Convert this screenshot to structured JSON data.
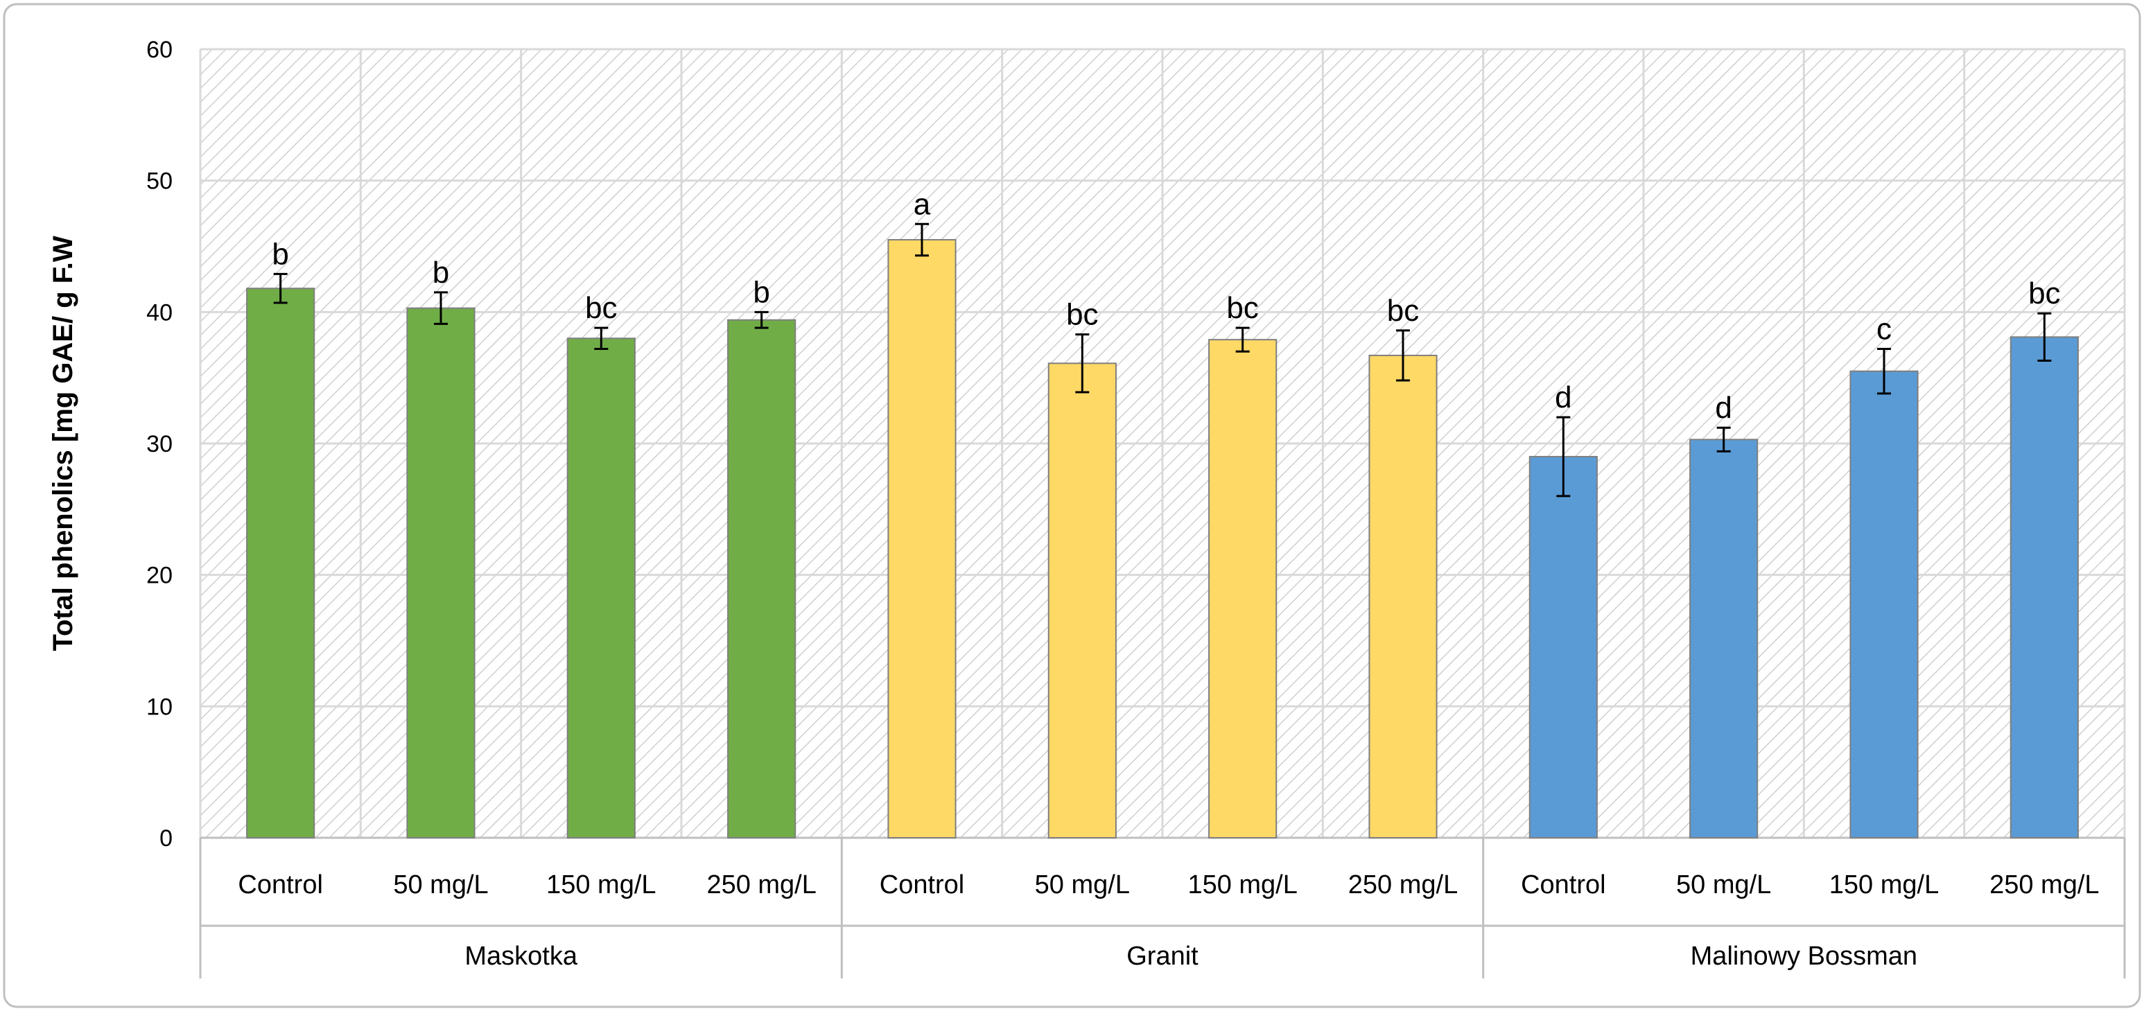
{
  "chart_data": {
    "type": "bar",
    "title": "",
    "xlabel": "",
    "ylabel": "Total phenolics [mg GAE/ g F.W",
    "ylim": [
      0,
      60
    ],
    "yticks": [
      0,
      10,
      20,
      30,
      40,
      50,
      60
    ],
    "grid": true,
    "background": "diagonal-hatch",
    "groups": [
      {
        "name": "Maskotka",
        "color": "#70AD47",
        "categories": [
          "Control",
          "50 mg/L",
          "150 mg/L",
          "250 mg/L"
        ]
      },
      {
        "name": "Granit",
        "color": "#FFD966",
        "categories": [
          "Control",
          "50 mg/L",
          "150 mg/L",
          "250 mg/L"
        ]
      },
      {
        "name": "Malinowy Bossman",
        "color": "#5B9BD5",
        "categories": [
          "Control",
          "50 mg/L",
          "150 mg/L",
          "250 mg/L"
        ]
      }
    ],
    "bars": [
      {
        "group": "Maskotka",
        "category": "Control",
        "value": 41.8,
        "error": 1.1,
        "letter": "b"
      },
      {
        "group": "Maskotka",
        "category": "50 mg/L",
        "value": 40.3,
        "error": 1.2,
        "letter": "b"
      },
      {
        "group": "Maskotka",
        "category": "150 mg/L",
        "value": 38.0,
        "error": 0.8,
        "letter": "bc"
      },
      {
        "group": "Maskotka",
        "category": "250 mg/L",
        "value": 39.4,
        "error": 0.6,
        "letter": "b"
      },
      {
        "group": "Granit",
        "category": "Control",
        "value": 45.5,
        "error": 1.2,
        "letter": "a"
      },
      {
        "group": "Granit",
        "category": "50 mg/L",
        "value": 36.1,
        "error": 2.2,
        "letter": "bc"
      },
      {
        "group": "Granit",
        "category": "150 mg/L",
        "value": 37.9,
        "error": 0.9,
        "letter": "bc"
      },
      {
        "group": "Granit",
        "category": "250 mg/L",
        "value": 36.7,
        "error": 1.9,
        "letter": "bc"
      },
      {
        "group": "Malinowy Bossman",
        "category": "Control",
        "value": 29.0,
        "error": 3.0,
        "letter": "d"
      },
      {
        "group": "Malinowy Bossman",
        "category": "50 mg/L",
        "value": 30.3,
        "error": 0.9,
        "letter": "d"
      },
      {
        "group": "Malinowy Bossman",
        "category": "150 mg/L",
        "value": 35.5,
        "error": 1.7,
        "letter": "c"
      },
      {
        "group": "Malinowy Bossman",
        "category": "250 mg/L",
        "value": 38.1,
        "error": 1.8,
        "letter": "bc"
      }
    ]
  }
}
